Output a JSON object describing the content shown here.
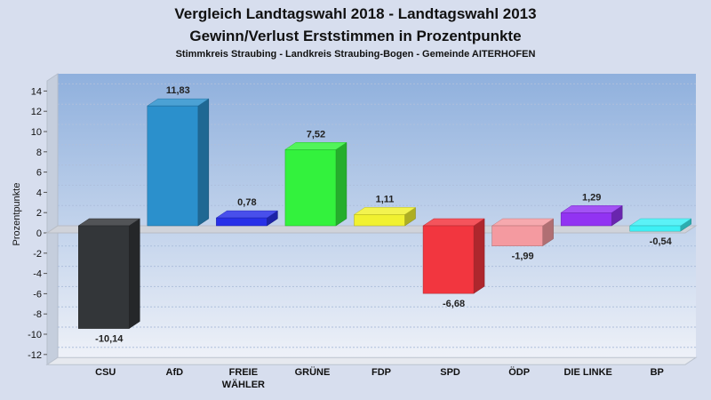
{
  "chart_data": {
    "type": "bar",
    "title": "Vergleich Landtagswahl 2018 - Landtagswahl 2013",
    "subtitle": "Gewinn/Verlust Erststimmen in Prozentpunkte",
    "caption": "Stimmkreis Straubing - Landkreis Straubing-Bogen - Gemeinde AITERHOFEN",
    "ylabel": "Prozentpunkte",
    "xlabel": "",
    "ylim": [
      -13,
      15
    ],
    "yticks": [
      14,
      12,
      10,
      8,
      6,
      4,
      2,
      0,
      -2,
      -4,
      -6,
      -8,
      -10,
      -12
    ],
    "grid": true,
    "categories": [
      "CSU",
      "AfD",
      "FREIE WÄHLER",
      "GRÜNE",
      "FDP",
      "SPD",
      "ÖDP",
      "DIE LINKE",
      "BP"
    ],
    "category_lines": [
      [
        "CSU"
      ],
      [
        "AfD"
      ],
      [
        "FREIE",
        "WÄHLER"
      ],
      [
        "GRÜNE"
      ],
      [
        "FDP"
      ],
      [
        "SPD"
      ],
      [
        "ÖDP"
      ],
      [
        "DIE LINKE"
      ],
      [
        "BP"
      ]
    ],
    "values": [
      -10.14,
      11.83,
      0.78,
      7.52,
      1.11,
      -6.68,
      -1.99,
      1.29,
      -0.54
    ],
    "value_labels": [
      "-10,14",
      "11,83",
      "0,78",
      "7,52",
      "1,11",
      "-6,68",
      "-1,99",
      "1,29",
      "-0,54"
    ],
    "colors": [
      "#333639",
      "#2b90cc",
      "#2830e8",
      "#33f23d",
      "#f1f130",
      "#f2363f",
      "#f49aa0",
      "#9233f2",
      "#3ef0f5"
    ]
  }
}
